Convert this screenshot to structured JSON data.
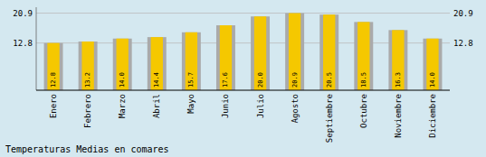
{
  "chart_data": {
    "type": "bar",
    "title": "Temperaturas Medias en comares",
    "categories": [
      "Enero",
      "Febrero",
      "Marzo",
      "Abril",
      "Mayo",
      "Junio",
      "Julio",
      "Agosto",
      "Septiembre",
      "Octubre",
      "Noviembre",
      "Diciembre"
    ],
    "values": [
      12.8,
      13.2,
      14.0,
      14.4,
      15.7,
      17.6,
      20.0,
      20.9,
      20.5,
      18.5,
      16.3,
      14.0
    ],
    "value_labels": [
      "12.8",
      "13.2",
      "14.0",
      "14.4",
      "15.7",
      "17.6",
      "20.0",
      "20.9",
      "20.5",
      "18.5",
      "16.3",
      "14.0"
    ],
    "color": "#F5C800",
    "ylim": [
      0,
      22.5
    ],
    "yticks": [
      12.8,
      20.9
    ],
    "grid": true,
    "data_labels": true
  }
}
